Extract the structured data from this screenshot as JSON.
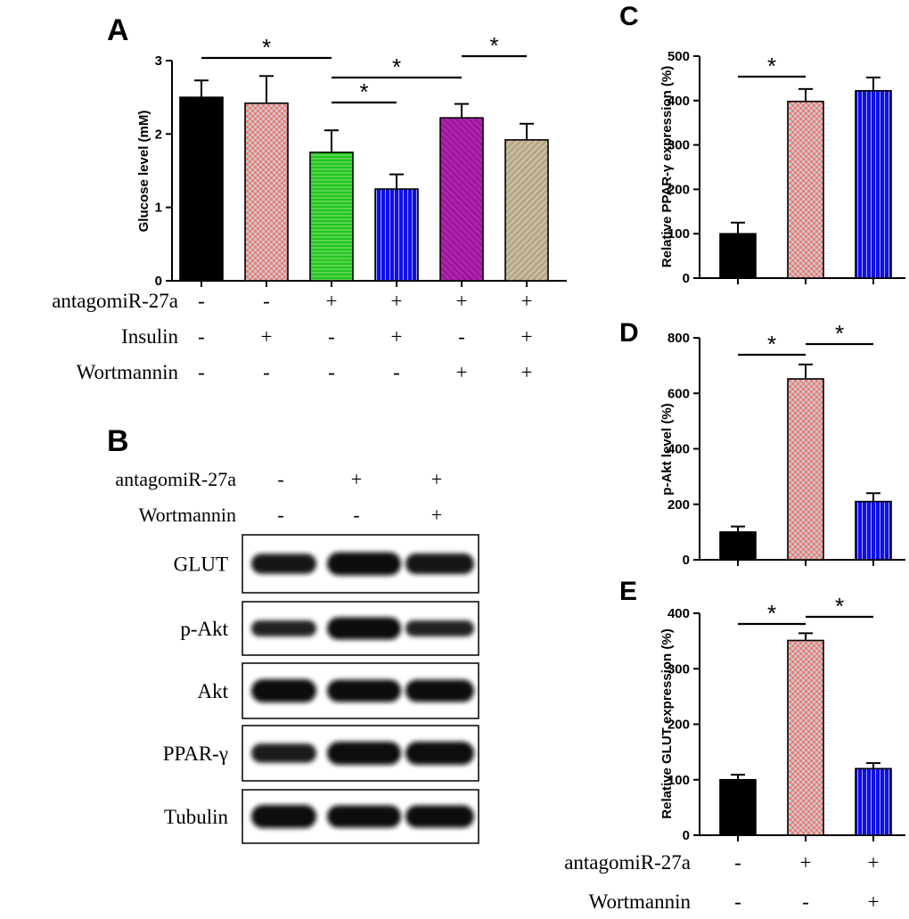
{
  "panels": {
    "A": {
      "letter": "A"
    },
    "B": {
      "letter": "B"
    },
    "C": {
      "letter": "C"
    },
    "D": {
      "letter": "D"
    },
    "E": {
      "letter": "E"
    }
  },
  "colors": {
    "black": "#000000",
    "checker": "#f07b76",
    "checker_alt": "#c8c8c8",
    "green": "#22c71e",
    "blue": "#1010e6",
    "purple": "#b21fb2",
    "khaki": "#b6a888"
  },
  "chart_data": [
    {
      "panel": "A",
      "type": "bar",
      "ylabel": "Glucose level (mM)",
      "ylim": [
        0,
        3
      ],
      "yticks": [
        0,
        1,
        2,
        3
      ],
      "values": [
        2.5,
        2.42,
        1.75,
        1.25,
        2.22,
        1.92
      ],
      "errors": [
        0.23,
        0.37,
        0.3,
        0.2,
        0.19,
        0.22
      ],
      "fills": [
        "black",
        "checker",
        "green",
        "blue",
        "purple",
        "khaki"
      ],
      "significance": [
        {
          "from": 0,
          "to": 2,
          "label": "*"
        },
        {
          "from": 2,
          "to": 4,
          "label": "*"
        },
        {
          "from": 2,
          "to": 3,
          "label": "*"
        },
        {
          "from": 4,
          "to": 5,
          "label": "*"
        }
      ],
      "conditions": [
        {
          "label": "antagomiR-27a",
          "signs": [
            "-",
            "-",
            "+",
            "+",
            "+",
            "+"
          ]
        },
        {
          "label": "Insulin",
          "signs": [
            "-",
            "+",
            "-",
            "+",
            "-",
            "+"
          ]
        },
        {
          "label": "Wortmannin",
          "signs": [
            "-",
            "-",
            "-",
            "-",
            "+",
            "+"
          ]
        }
      ]
    },
    {
      "panel": "C",
      "type": "bar",
      "ylabel": "Relative PPAR-γ expression (%)",
      "ylim": [
        0,
        500
      ],
      "yticks": [
        0,
        100,
        200,
        300,
        400,
        500
      ],
      "values": [
        100,
        398,
        422
      ],
      "errors": [
        25,
        28,
        30
      ],
      "fills": [
        "black",
        "checker",
        "blue"
      ],
      "significance": [
        {
          "from": 0,
          "to": 1,
          "label": "*"
        }
      ]
    },
    {
      "panel": "D",
      "type": "bar",
      "ylabel": "p-Akt level (%)",
      "ylim": [
        0,
        800
      ],
      "yticks": [
        0,
        200,
        400,
        600,
        800
      ],
      "values": [
        100,
        652,
        210
      ],
      "errors": [
        20,
        52,
        30
      ],
      "fills": [
        "black",
        "checker",
        "blue"
      ],
      "significance": [
        {
          "from": 0,
          "to": 1,
          "label": "*"
        },
        {
          "from": 1,
          "to": 2,
          "label": "*"
        }
      ]
    },
    {
      "panel": "E",
      "type": "bar",
      "ylabel": "Relative GLUT expression (%)",
      "ylim": [
        0,
        400
      ],
      "yticks": [
        0,
        100,
        200,
        300,
        400
      ],
      "values": [
        100,
        351,
        120
      ],
      "errors": [
        9,
        13,
        10
      ],
      "fills": [
        "black",
        "checker",
        "blue"
      ],
      "significance": [
        {
          "from": 0,
          "to": 1,
          "label": "*"
        },
        {
          "from": 1,
          "to": 2,
          "label": "*"
        }
      ],
      "conditions": [
        {
          "label": "antagomiR-27a",
          "signs": [
            "-",
            "+",
            "+"
          ]
        },
        {
          "label": "Wortmannin",
          "signs": [
            "-",
            "-",
            "+"
          ]
        }
      ]
    }
  ],
  "blot": {
    "conditions": [
      {
        "label": "antagomiR-27a",
        "signs": [
          "-",
          "+",
          "+"
        ]
      },
      {
        "label": "Wortmannin",
        "signs": [
          "-",
          "-",
          "+"
        ]
      }
    ],
    "rows": [
      {
        "label": "GLUT",
        "intensity": [
          0.8,
          1.0,
          0.85
        ]
      },
      {
        "label": "p-Akt",
        "intensity": [
          0.55,
          0.95,
          0.55
        ]
      },
      {
        "label": "Akt",
        "intensity": [
          1.0,
          0.95,
          0.95
        ]
      },
      {
        "label": "PPAR-γ",
        "intensity": [
          0.75,
          1.0,
          1.0
        ]
      },
      {
        "label": "Tubulin",
        "intensity": [
          1.0,
          0.95,
          0.95
        ]
      }
    ]
  }
}
